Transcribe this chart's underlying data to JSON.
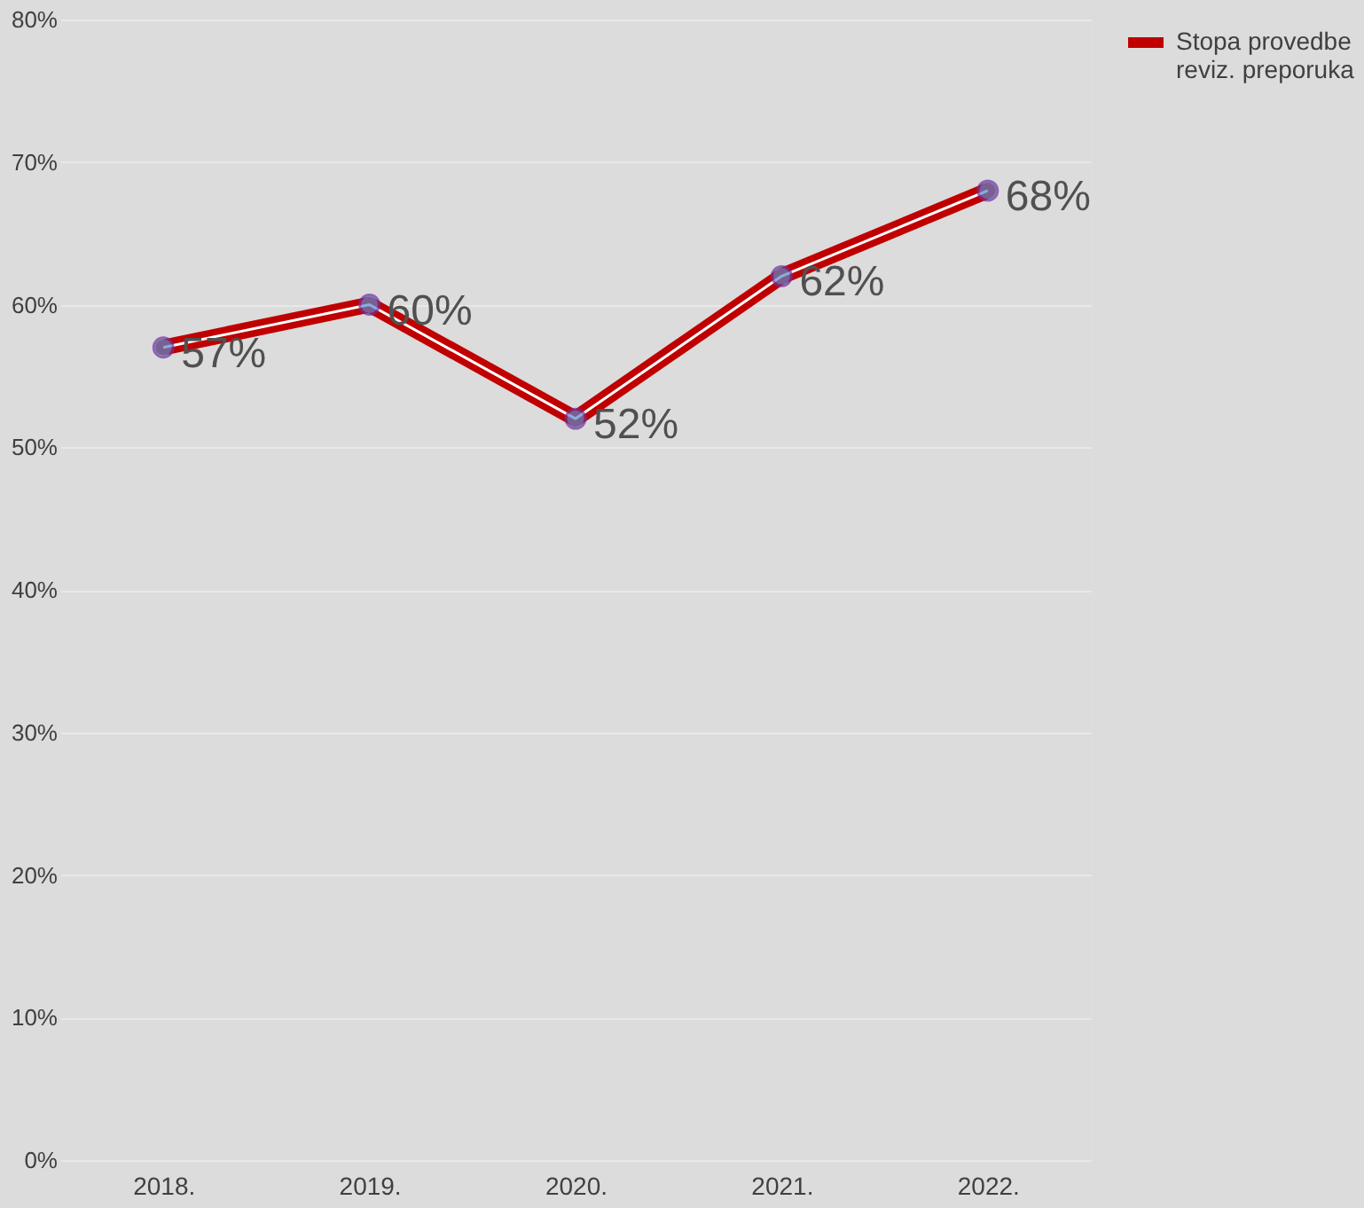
{
  "chart_data": {
    "type": "line",
    "categories": [
      "2018.",
      "2019.",
      "2020.",
      "2021.",
      "2022."
    ],
    "series": [
      {
        "name": "Stopa provedbe reviz. preporuka",
        "color": "#c00000",
        "values": [
          57,
          60,
          52,
          62,
          68
        ],
        "value_labels": [
          "57%",
          "60%",
          "52%",
          "62%",
          "68%"
        ]
      }
    ],
    "ylim": [
      0,
      80
    ],
    "yticks": [
      {
        "value": 0,
        "label": "0%"
      },
      {
        "value": 10,
        "label": "10%"
      },
      {
        "value": 20,
        "label": "20%"
      },
      {
        "value": 30,
        "label": "30%"
      },
      {
        "value": 40,
        "label": "40%"
      },
      {
        "value": 50,
        "label": "50%"
      },
      {
        "value": 60,
        "label": "60%"
      },
      {
        "value": 70,
        "label": "70%"
      },
      {
        "value": 80,
        "label": "80%"
      }
    ],
    "grid": "y",
    "legend": "right",
    "marker": "circle",
    "line_style": "solid"
  }
}
